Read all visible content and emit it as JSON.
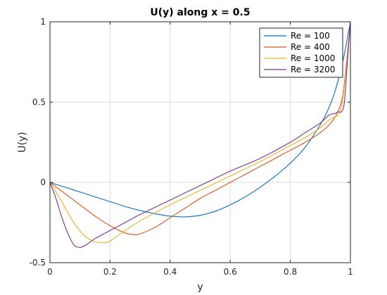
{
  "chart_data": {
    "type": "line",
    "title": "U(y) along x = 0.5",
    "xlabel": "y",
    "ylabel": "U(y)",
    "xlim": [
      0,
      1
    ],
    "ylim": [
      -0.5,
      1
    ],
    "xticks": [
      0,
      0.2,
      0.4,
      0.6,
      0.8,
      1
    ],
    "xtick_labels": [
      "0",
      "0.2",
      "0.4",
      "0.6",
      "0.8",
      "1"
    ],
    "yticks": [
      -0.5,
      0,
      0.5,
      1
    ],
    "ytick_labels": [
      "-0.5",
      "0",
      "0.5",
      "1"
    ],
    "grid": true,
    "legend_position": "top-right",
    "series": [
      {
        "name": "Re = 100",
        "color": "#0072BD",
        "x": [
          0,
          0.05,
          0.1,
          0.15,
          0.2,
          0.25,
          0.3,
          0.35,
          0.4,
          0.45,
          0.5,
          0.55,
          0.6,
          0.65,
          0.7,
          0.75,
          0.8,
          0.85,
          0.9,
          0.92,
          0.94,
          0.96,
          0.98,
          1.0
        ],
        "y": [
          0,
          -0.03,
          -0.06,
          -0.09,
          -0.12,
          -0.15,
          -0.175,
          -0.195,
          -0.21,
          -0.215,
          -0.205,
          -0.18,
          -0.14,
          -0.09,
          -0.03,
          0.04,
          0.12,
          0.22,
          0.36,
          0.43,
          0.52,
          0.64,
          0.8,
          1.0
        ]
      },
      {
        "name": "Re = 400",
        "color": "#D95319",
        "x": [
          0,
          0.05,
          0.1,
          0.15,
          0.2,
          0.25,
          0.28,
          0.3,
          0.35,
          0.4,
          0.45,
          0.5,
          0.55,
          0.6,
          0.65,
          0.7,
          0.75,
          0.8,
          0.85,
          0.9,
          0.93,
          0.95,
          0.97,
          0.98,
          0.99,
          1.0
        ],
        "y": [
          0,
          -0.07,
          -0.14,
          -0.21,
          -0.27,
          -0.315,
          -0.325,
          -0.32,
          -0.28,
          -0.22,
          -0.16,
          -0.1,
          -0.05,
          0,
          0.05,
          0.1,
          0.15,
          0.2,
          0.25,
          0.31,
          0.36,
          0.41,
          0.5,
          0.62,
          0.8,
          1.0
        ]
      },
      {
        "name": "Re = 1000",
        "color": "#EDB120",
        "x": [
          0,
          0.03,
          0.06,
          0.09,
          0.12,
          0.15,
          0.18,
          0.2,
          0.25,
          0.3,
          0.4,
          0.5,
          0.6,
          0.7,
          0.8,
          0.85,
          0.9,
          0.93,
          0.95,
          0.96,
          0.97,
          0.98,
          0.99,
          1.0
        ],
        "y": [
          0,
          -0.09,
          -0.19,
          -0.28,
          -0.34,
          -0.37,
          -0.375,
          -0.365,
          -0.3,
          -0.24,
          -0.14,
          -0.05,
          0.04,
          0.13,
          0.23,
          0.28,
          0.34,
          0.39,
          0.41,
          0.42,
          0.47,
          0.6,
          0.78,
          1.0
        ]
      },
      {
        "name": "Re = 3200",
        "color": "#7E2F8E",
        "x": [
          0,
          0.02,
          0.04,
          0.06,
          0.08,
          0.1,
          0.12,
          0.15,
          0.2,
          0.25,
          0.3,
          0.4,
          0.5,
          0.6,
          0.7,
          0.8,
          0.85,
          0.9,
          0.93,
          0.95,
          0.96,
          0.97,
          0.98,
          0.99,
          1.0
        ],
        "y": [
          0,
          -0.1,
          -0.22,
          -0.32,
          -0.39,
          -0.405,
          -0.39,
          -0.35,
          -0.3,
          -0.25,
          -0.2,
          -0.11,
          -0.02,
          0.07,
          0.15,
          0.25,
          0.31,
          0.37,
          0.42,
          0.43,
          0.44,
          0.44,
          0.5,
          0.75,
          1.0
        ]
      }
    ]
  }
}
